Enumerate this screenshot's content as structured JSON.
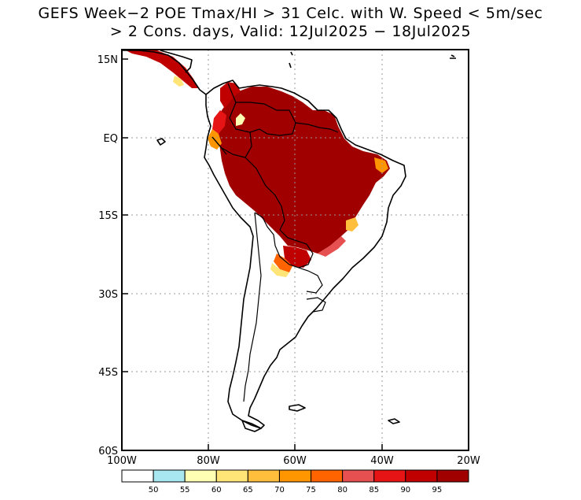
{
  "title": {
    "line1": "GEFS Week−2 POE Tmax/HI > 31 Celc. with W. Speed < 5m/sec",
    "line2": "> 2 Cons. days, Valid: 12Jul2025 − 18Jul2025"
  },
  "map": {
    "region": "South America",
    "lon_range": [
      -100,
      -20
    ],
    "lat_range": [
      -60,
      15
    ],
    "lat_ticks": [
      {
        "value": 15,
        "label": "15N"
      },
      {
        "value": 0,
        "label": "EQ"
      },
      {
        "value": -15,
        "label": "15S"
      },
      {
        "value": -30,
        "label": "30S"
      },
      {
        "value": -45,
        "label": "45S"
      },
      {
        "value": -60,
        "label": "60S"
      }
    ],
    "lon_ticks": [
      {
        "value": -100,
        "label": "100W"
      },
      {
        "value": -80,
        "label": "80W"
      },
      {
        "value": -60,
        "label": "60W"
      },
      {
        "value": -40,
        "label": "40W"
      },
      {
        "value": -20,
        "label": "20W"
      }
    ],
    "grid": "dotted, every 15 degrees latitude and 20 degrees longitude"
  },
  "colorbar": {
    "labels": [
      "50",
      "55",
      "60",
      "65",
      "70",
      "75",
      "80",
      "85",
      "90",
      "95"
    ],
    "colors": [
      "#ffffff",
      "#a8e6f0",
      "#ffffb4",
      "#ffe478",
      "#ffbe3c",
      "#ff9600",
      "#ff6400",
      "#e65050",
      "#e61414",
      "#c00000",
      "#a00000"
    ]
  }
}
